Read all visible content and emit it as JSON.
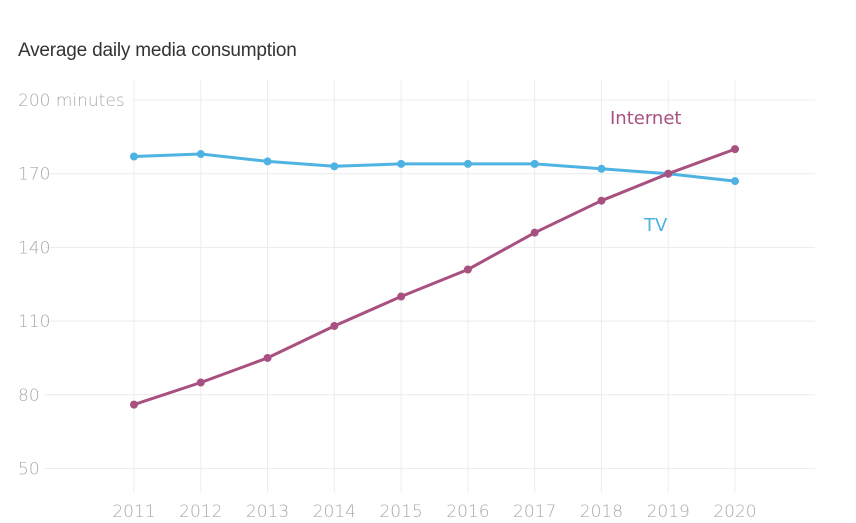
{
  "chart_data": {
    "type": "line",
    "title": "Average daily media consumption",
    "xlabel": "",
    "ylabel": "minutes",
    "x": [
      "2011",
      "2012",
      "2013",
      "2014",
      "2015",
      "2016",
      "2017",
      "2018",
      "2019",
      "2020"
    ],
    "ylim": [
      50,
      200
    ],
    "yticks": [
      50,
      80,
      110,
      140,
      170,
      200
    ],
    "ytick_labels": [
      "50",
      "80",
      "110",
      "140",
      "170",
      "200 minutes"
    ],
    "grid": true,
    "legend": "inline-labels",
    "series": [
      {
        "name": "TV",
        "color": "#4eb3e2",
        "values": [
          177,
          178,
          175,
          173,
          174,
          174,
          174,
          172,
          170,
          167
        ]
      },
      {
        "name": "Internet",
        "color": "#a8507f",
        "values": [
          76,
          85,
          95,
          108,
          120,
          131,
          146,
          159,
          170,
          180
        ]
      }
    ]
  }
}
